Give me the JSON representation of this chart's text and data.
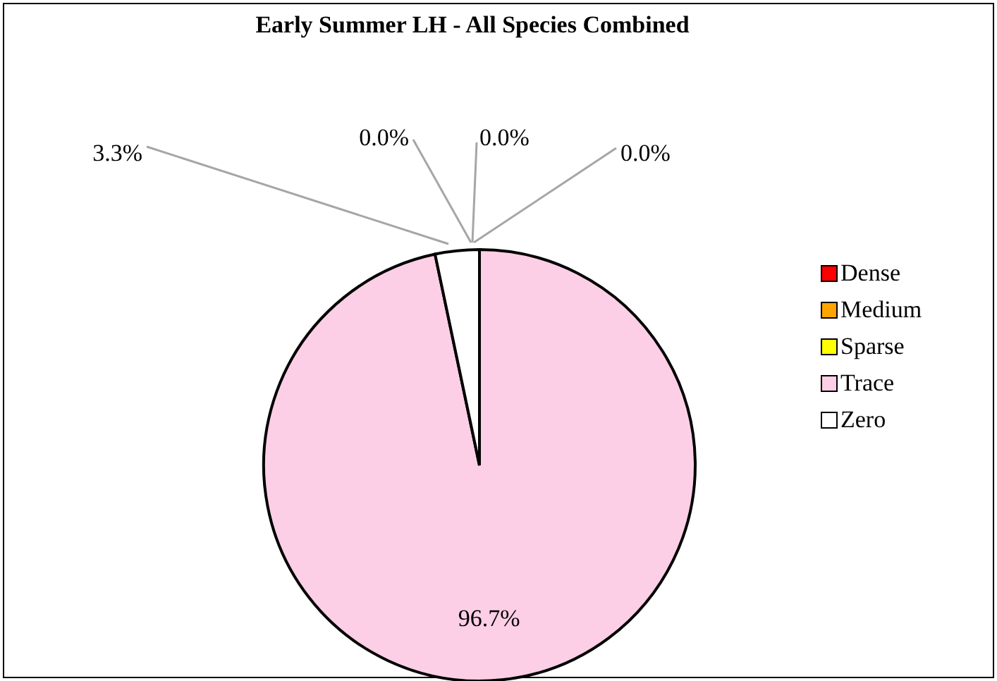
{
  "chart_data": {
    "type": "pie",
    "title": "Early Summer LH - All Species Combined",
    "categories": [
      "Dense",
      "Medium",
      "Sparse",
      "Trace",
      "Zero"
    ],
    "values": [
      0.0,
      0.0,
      0.0,
      96.7,
      3.3
    ],
    "colors": [
      "#ff0000",
      "#ffa500",
      "#ffff00",
      "#fccfe6",
      "#ffffff"
    ],
    "value_labels": [
      "0.0%",
      "0.0%",
      "0.0%",
      "96.7%",
      "3.3%"
    ],
    "legend": "right"
  }
}
